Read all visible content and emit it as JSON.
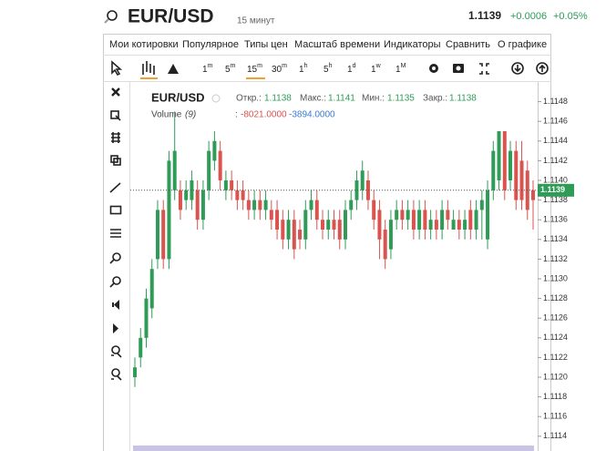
{
  "header": {
    "symbol": "EUR/USD",
    "interval": "15 минут",
    "price": "1.1139",
    "change": "+0.0006",
    "change_pct": "+0.05%"
  },
  "menu": [
    "Мои котировки",
    "Популярное",
    "Типы цен",
    "Масштаб времени",
    "Индикаторы",
    "Сравнить",
    "О графике"
  ],
  "timeframes": [
    {
      "n": "1",
      "u": "m"
    },
    {
      "n": "5",
      "u": "m"
    },
    {
      "n": "15",
      "u": "m"
    },
    {
      "n": "30",
      "u": "m"
    },
    {
      "n": "1",
      "u": "h"
    },
    {
      "n": "5",
      "u": "h"
    },
    {
      "n": "1",
      "u": "d"
    },
    {
      "n": "1",
      "u": "w"
    },
    {
      "n": "1",
      "u": "M"
    }
  ],
  "legend": {
    "symbol": "EUR/USD",
    "open_label": "Откр.:",
    "open": "1.1138",
    "high_label": "Макс.:",
    "high": "1.1141",
    "low_label": "Мин.:",
    "low": "1.1135",
    "close_label": "Закр.:",
    "close": "1.1138",
    "volume_label": "Volume",
    "volume_period": "(9)",
    "volume_sep": ":",
    "volume_1": "-8021.0000",
    "volume_2": "-3894.0000"
  },
  "chart_data": {
    "type": "candlestick",
    "up_color": "#2e9b57",
    "down_color": "#d9534f",
    "last_price": 1.1139,
    "ylim": [
      1.11125,
      1.115
    ],
    "yticks": [
      {
        "value": 1.1114,
        "label": "1.1114"
      },
      1.1116,
      1.1118,
      {
        "value": 1.112,
        "label": "1.1120"
      },
      1.1122,
      1.1124,
      1.1126,
      1.1128,
      {
        "value": 1.113,
        "label": "1.1130"
      },
      1.1132,
      1.1134,
      1.1136,
      1.1138,
      {
        "value": 1.114,
        "label": "1.1140"
      },
      1.1142,
      1.1144,
      1.1146,
      1.1148
    ],
    "ohlc": [
      [
        1.112,
        1.1122,
        1.1119,
        1.1121
      ],
      [
        1.1122,
        1.1125,
        1.1121,
        1.1124
      ],
      [
        1.1124,
        1.1129,
        1.1123,
        1.1128
      ],
      [
        1.1127,
        1.1132,
        1.1126,
        1.1131
      ],
      [
        1.1132,
        1.1138,
        1.1131,
        1.1137
      ],
      [
        1.1137,
        1.1138,
        1.1131,
        1.1132
      ],
      [
        1.1132,
        1.1143,
        1.1131,
        1.1142
      ],
      [
        1.1139,
        1.1147,
        1.1138,
        1.1143
      ],
      [
        1.1139,
        1.114,
        1.1136,
        1.1137
      ],
      [
        1.1138,
        1.114,
        1.1137,
        1.1139
      ],
      [
        1.1138,
        1.1141,
        1.1137,
        1.114
      ],
      [
        1.1139,
        1.114,
        1.1135,
        1.1136
      ],
      [
        1.1136,
        1.114,
        1.1135,
        1.1139
      ],
      [
        1.1139,
        1.1144,
        1.1138,
        1.1143
      ],
      [
        1.1142,
        1.1145,
        1.1141,
        1.1144
      ],
      [
        1.1143,
        1.1144,
        1.1139,
        1.114
      ],
      [
        1.1139,
        1.1141,
        1.1138,
        1.114
      ],
      [
        1.114,
        1.1141,
        1.1138,
        1.1139
      ],
      [
        1.1139,
        1.114,
        1.1137,
        1.1138
      ],
      [
        1.1139,
        1.114,
        1.1137,
        1.1138
      ],
      [
        1.1138,
        1.1139,
        1.1136,
        1.1137
      ],
      [
        1.1137,
        1.1139,
        1.1136,
        1.1138
      ],
      [
        1.1138,
        1.1139,
        1.1136,
        1.1137
      ],
      [
        1.1137,
        1.1139,
        1.1136,
        1.1138
      ],
      [
        1.1137,
        1.1138,
        1.1135,
        1.1136
      ],
      [
        1.1137,
        1.1138,
        1.1134,
        1.1135
      ],
      [
        1.1136,
        1.1137,
        1.1133,
        1.1134
      ],
      [
        1.1134,
        1.1137,
        1.1133,
        1.1136
      ],
      [
        1.1136,
        1.1137,
        1.1132,
        1.1133
      ],
      [
        1.1135,
        1.1136,
        1.1133,
        1.1134
      ],
      [
        1.1134,
        1.1138,
        1.1133,
        1.1137
      ],
      [
        1.1137,
        1.1139,
        1.1136,
        1.1138
      ],
      [
        1.1138,
        1.1139,
        1.1135,
        1.1136
      ],
      [
        1.1136,
        1.1137,
        1.1134,
        1.1135
      ],
      [
        1.1135,
        1.1137,
        1.1134,
        1.1136
      ],
      [
        1.1136,
        1.1137,
        1.1134,
        1.1135
      ],
      [
        1.1136,
        1.1137,
        1.1133,
        1.1134
      ],
      [
        1.1134,
        1.1138,
        1.1133,
        1.1137
      ],
      [
        1.1137,
        1.1139,
        1.1136,
        1.1138
      ],
      [
        1.1138,
        1.1141,
        1.1137,
        1.114
      ],
      [
        1.1139,
        1.1142,
        1.1138,
        1.1141
      ],
      [
        1.114,
        1.1141,
        1.1137,
        1.1138
      ],
      [
        1.1138,
        1.1139,
        1.1135,
        1.1136
      ],
      [
        1.1137,
        1.1138,
        1.1132,
        1.1134
      ],
      [
        1.1135,
        1.1136,
        1.1131,
        1.1132
      ],
      [
        1.1133,
        1.1137,
        1.1132,
        1.1136
      ],
      [
        1.1136,
        1.1138,
        1.1135,
        1.1137
      ],
      [
        1.1137,
        1.1138,
        1.1135,
        1.1136
      ],
      [
        1.1136,
        1.1138,
        1.1135,
        1.1137
      ],
      [
        1.1137,
        1.1138,
        1.1134,
        1.1135
      ],
      [
        1.1135,
        1.1138,
        1.1134,
        1.1137
      ],
      [
        1.1137,
        1.1138,
        1.1134,
        1.1135
      ],
      [
        1.1135,
        1.1137,
        1.1134,
        1.1136
      ],
      [
        1.1136,
        1.1137,
        1.1134,
        1.1135
      ],
      [
        1.1135,
        1.1138,
        1.1134,
        1.1137
      ],
      [
        1.1137,
        1.1138,
        1.1135,
        1.1136
      ],
      [
        1.1135,
        1.1137,
        1.1135,
        1.1136
      ],
      [
        1.1136,
        1.1137,
        1.1134,
        1.1135
      ],
      [
        1.1135,
        1.1137,
        1.1134,
        1.1136
      ],
      [
        1.1137,
        1.1138,
        1.1134,
        1.1135
      ],
      [
        1.1135,
        1.1138,
        1.1134,
        1.1137
      ],
      [
        1.1137,
        1.1139,
        1.1134,
        1.1138
      ],
      [
        1.1134,
        1.114,
        1.1133,
        1.1139
      ],
      [
        1.1139,
        1.1144,
        1.1138,
        1.1143
      ],
      [
        1.114,
        1.1145,
        1.1139,
        1.1145
      ],
      [
        1.1145,
        1.1145,
        1.1138,
        1.1139
      ],
      [
        1.114,
        1.1144,
        1.1139,
        1.1143
      ],
      [
        1.1143,
        1.1144,
        1.1137,
        1.1138
      ],
      [
        1.1142,
        1.1144,
        1.1137,
        1.1138
      ],
      [
        1.1141,
        1.1142,
        1.1136,
        1.1137
      ],
      [
        1.1139,
        1.114,
        1.1135,
        1.1138
      ]
    ]
  }
}
